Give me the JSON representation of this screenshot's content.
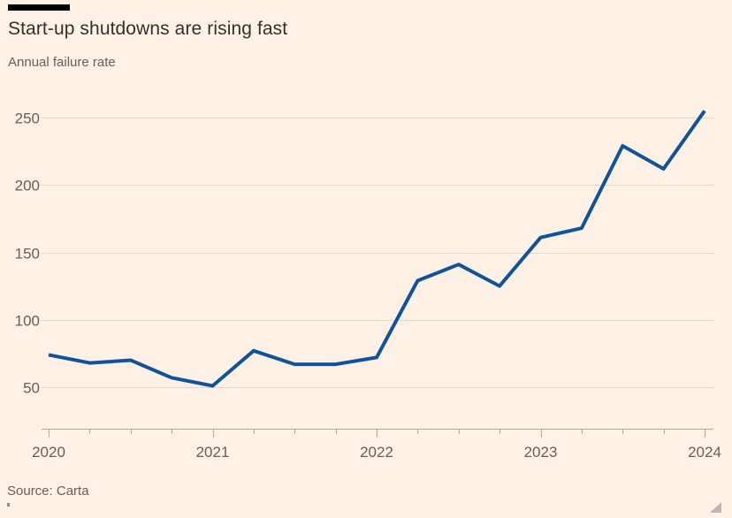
{
  "page": {
    "title": "Start-up shutdowns are rising fast",
    "subtitle": "Annual failure rate",
    "source": "Source: Carta"
  },
  "colors": {
    "background": "#FFF1E5",
    "line": "#0F5499",
    "title_text": "#33302E",
    "muted_text": "#66605B",
    "gridline": "#E4D7C9",
    "axis": "#B3A99C",
    "accent_bar": "#000000",
    "resize_handle": "#BFB7AD"
  },
  "chart_data": {
    "type": "line",
    "title": "Start-up shutdowns are rising fast",
    "subtitle": "Annual failure rate",
    "source": "Source: Carta",
    "x": [
      "2020-Q1",
      "2020-Q2",
      "2020-Q3",
      "2020-Q4",
      "2021-Q1",
      "2021-Q2",
      "2021-Q3",
      "2021-Q4",
      "2022-Q1",
      "2022-Q2",
      "2022-Q3",
      "2022-Q4",
      "2023-Q1",
      "2023-Q2",
      "2023-Q3",
      "2023-Q4",
      "2024-Q1"
    ],
    "series": [
      {
        "name": "Annual failure rate",
        "values": [
          74,
          68,
          70,
          57,
          51,
          77,
          67,
          67,
          72,
          129,
          141,
          125,
          161,
          168,
          229,
          212,
          255
        ]
      }
    ],
    "x_tick_labels": [
      "2020",
      "2021",
      "2022",
      "2023",
      "2024"
    ],
    "y_ticks": [
      50,
      100,
      150,
      200,
      250
    ],
    "ylim": [
      30,
      270
    ],
    "xlabel": "",
    "ylabel": "",
    "grid": "horizontal",
    "legend": "none"
  }
}
